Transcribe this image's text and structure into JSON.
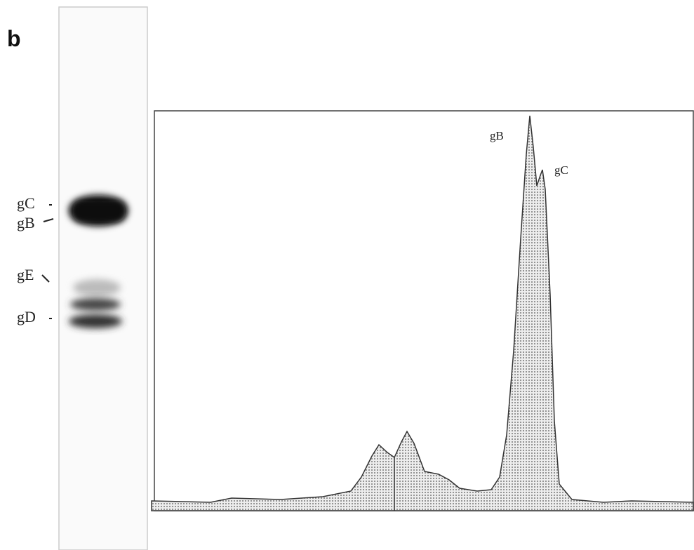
{
  "panel_label": "b",
  "gel": {
    "labels": [
      "gC",
      "gB",
      "gE",
      "gD"
    ]
  },
  "trace": {
    "peak_labels": [
      "gB",
      "gC"
    ]
  }
}
